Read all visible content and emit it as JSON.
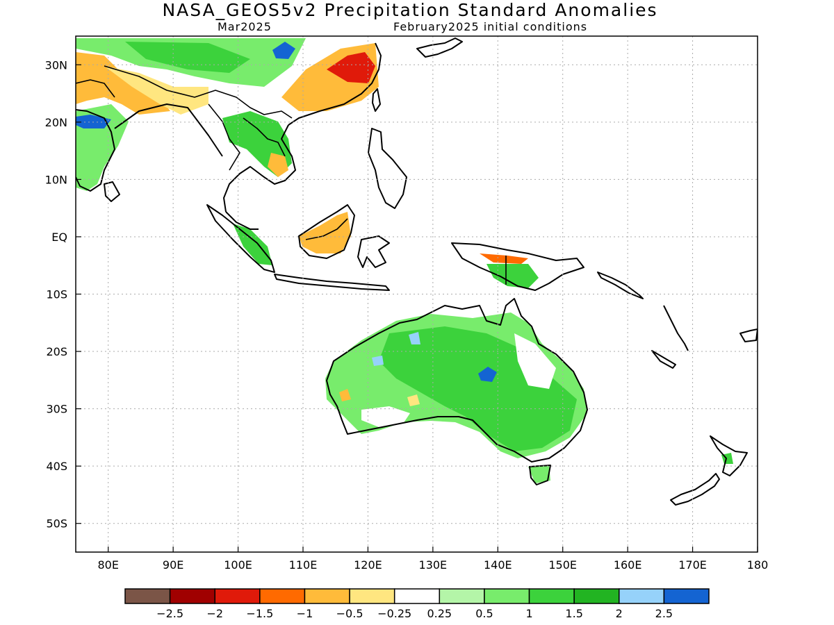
{
  "title": "NASA_GEOS5v2 Precipitation Standard Anomalies",
  "subtitle_left": "Mar2025",
  "subtitle_right": "February2025 initial conditions",
  "lat_labels": [
    "30N",
    "20N",
    "10N",
    "EQ",
    "10S",
    "20S",
    "30S",
    "40S",
    "50S"
  ],
  "lon_labels": [
    "80E",
    "90E",
    "100E",
    "110E",
    "120E",
    "130E",
    "140E",
    "150E",
    "160E",
    "170E",
    "180"
  ],
  "lat_values": [
    30,
    20,
    10,
    0,
    -10,
    -20,
    -30,
    -40,
    -50
  ],
  "lon_values": [
    80,
    90,
    100,
    110,
    120,
    130,
    140,
    150,
    160,
    170,
    180
  ],
  "extent": {
    "lon_min": 75,
    "lon_max": 180,
    "lat_min": -55,
    "lat_max": 35
  },
  "colorbar": {
    "colors": [
      "#7b5547",
      "#a00000",
      "#e01a0a",
      "#ff6a00",
      "#ffbb3a",
      "#ffe680",
      "#ffffff",
      "#b4f5a8",
      "#78ec6c",
      "#3cd23c",
      "#22b422",
      "#96d2fa",
      "#1464d2"
    ],
    "labels": [
      "−2.5",
      "−2",
      "−1.5",
      "−1",
      "−0.5",
      "−0.25",
      "0.25",
      "0.5",
      "1",
      "1.5",
      "2",
      "2.5"
    ]
  }
}
